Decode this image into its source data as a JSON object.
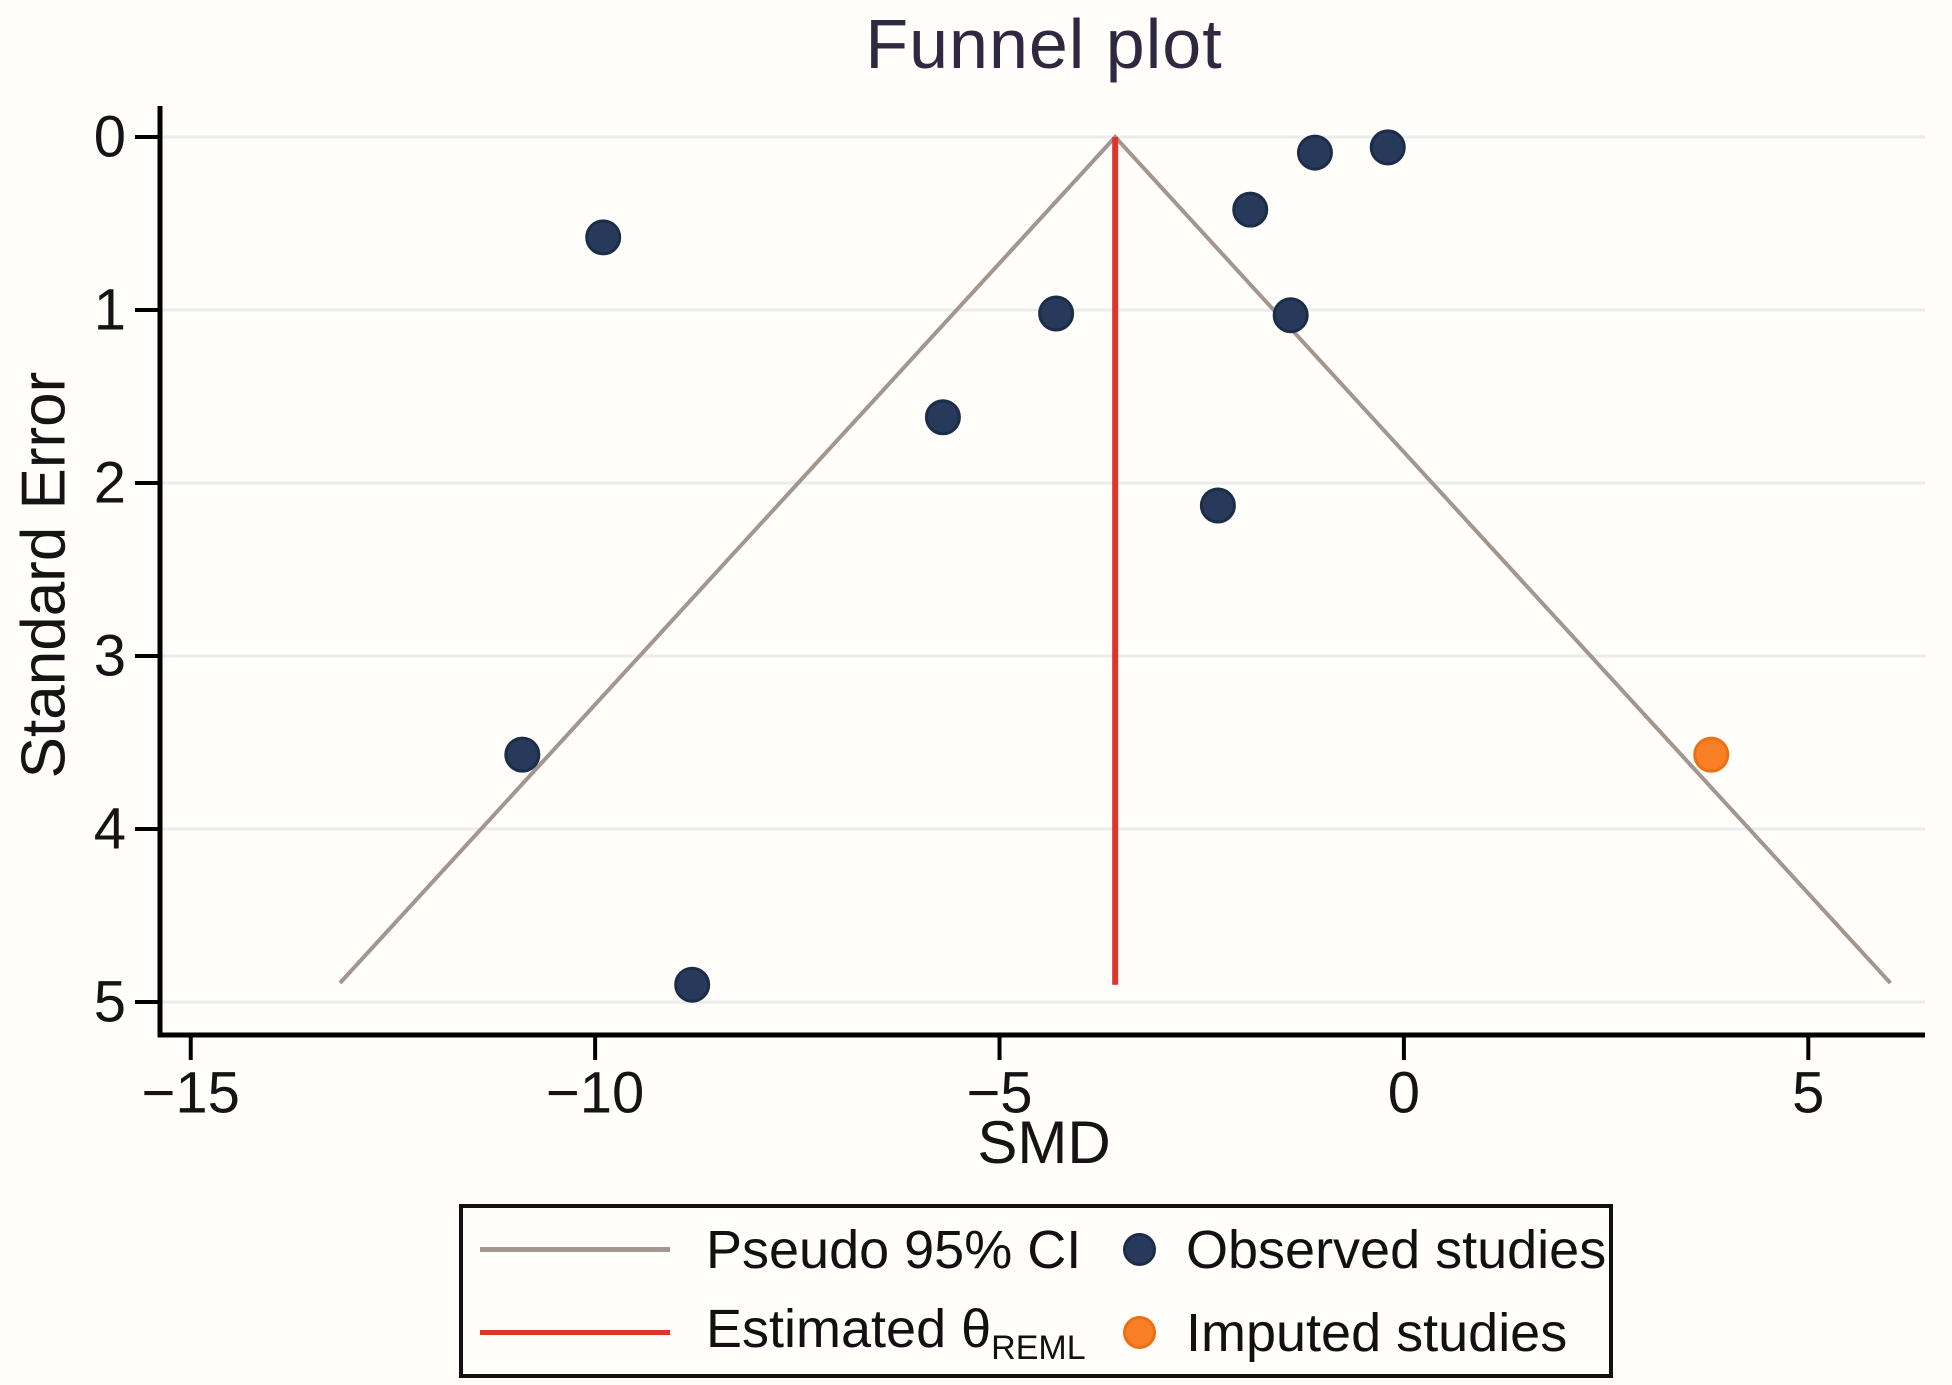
{
  "chart_data": {
    "type": "scatter",
    "title": "Funnel plot",
    "xlabel": "SMD",
    "ylabel": "Standard Error",
    "xlim": [
      -15.38,
      6.48
    ],
    "se_lim": [
      0,
      5.19
    ],
    "y_axis_inverted_note": "standard error increases downward",
    "grid": "horizontal-only",
    "x_ticks": [
      {
        "v": -15,
        "label": "−15"
      },
      {
        "v": -10,
        "label": "−10"
      },
      {
        "v": -5,
        "label": "−5"
      },
      {
        "v": 0,
        "label": "0"
      },
      {
        "v": 5,
        "label": "5"
      }
    ],
    "y_ticks": [
      {
        "v": 0,
        "label": "0"
      },
      {
        "v": 1,
        "label": "1"
      },
      {
        "v": 2,
        "label": "2"
      },
      {
        "v": 3,
        "label": "3"
      },
      {
        "v": 4,
        "label": "4"
      },
      {
        "v": 5,
        "label": "5"
      }
    ],
    "series": [
      {
        "name": "Observed studies",
        "type": "scatter",
        "color": "#273a5b",
        "stroke": "#1d2c47",
        "points": [
          [
            -10.9,
            3.57
          ],
          [
            -9.9,
            0.58
          ],
          [
            -8.8,
            4.9
          ],
          [
            -5.7,
            1.62
          ],
          [
            -4.3,
            1.02
          ],
          [
            -2.3,
            2.13
          ],
          [
            -1.9,
            0.42
          ],
          [
            -1.4,
            1.03
          ],
          [
            -1.1,
            0.09
          ],
          [
            -0.2,
            0.06
          ]
        ]
      },
      {
        "name": "Imputed studies",
        "type": "scatter",
        "color": "#f87f26",
        "stroke": "#ee6f12",
        "points": [
          [
            3.8,
            3.57
          ]
        ]
      }
    ],
    "estimated_theta": {
      "name": "Estimated θ REML",
      "type": "vline",
      "x": -3.57,
      "se_span": [
        0,
        4.9
      ],
      "color": "#e0342a"
    },
    "pseudo_ci": {
      "name": "Pseudo 95% CI",
      "type": "funnel",
      "apex_smd": -3.57,
      "slope_z": 1.96,
      "se_end": 4.89,
      "color": "#a39690"
    },
    "legend": {
      "position": "bottom",
      "items": [
        {
          "swatch": "line",
          "color": "#a39690",
          "label": "Pseudo 95% CI"
        },
        {
          "swatch": "line",
          "color": "#e0342a",
          "label": "Estimated θ",
          "label_sub": "REML"
        },
        {
          "swatch": "dot",
          "color": "#273a5b",
          "stroke": "#1d2c47",
          "label": "Observed studies"
        },
        {
          "swatch": "dot",
          "color": "#f87f26",
          "stroke": "#ee6f12",
          "label": "Imputed studies"
        }
      ]
    },
    "style": {
      "title_color": "#2e2940",
      "axis_color": "#000000",
      "tick_label_color": "#141414",
      "gridline_color": "#eaedec",
      "background": "#fffefb"
    }
  }
}
